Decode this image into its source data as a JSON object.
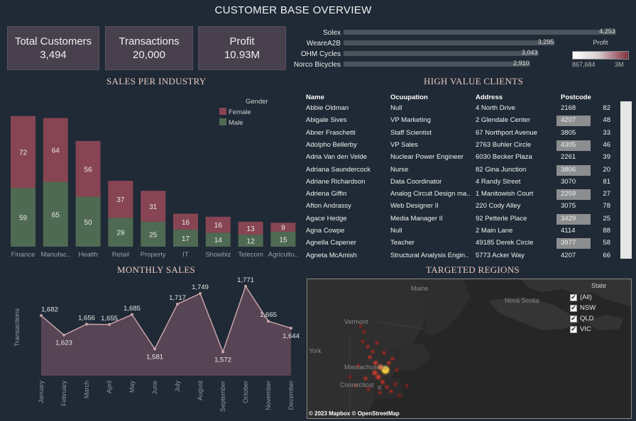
{
  "title": "CUSTOMER BASE OVERVIEW",
  "kpis": [
    {
      "label": "Total Customers",
      "value": "3,494"
    },
    {
      "label": "Transactions",
      "value": "20,000"
    },
    {
      "label": "Profit",
      "value": "10.93M"
    }
  ],
  "top_profit": {
    "legend_title": "Profit",
    "legend_min": "867,684",
    "legend_max": "3M",
    "legend_colors": [
      "#ffffff",
      "#7c3040"
    ],
    "bars": [
      {
        "name": "Solex",
        "value": 4253,
        "label": "4,253"
      },
      {
        "name": "WeareA2B",
        "value": 3295,
        "label": "3,295"
      },
      {
        "name": "OHM Cycles",
        "value": 3043,
        "label": "3,043"
      },
      {
        "name": "Norco Bicycles",
        "value": 2910,
        "label": "2,910"
      }
    ]
  },
  "sections": {
    "industry": "SALES  PER INDUSTRY",
    "clients": "HIGH VALUE CLIENTS",
    "monthly": "MONTHLY SALES",
    "regions": "TARGETED REGIONS"
  },
  "chart_data": [
    {
      "type": "bar",
      "stacked": true,
      "categories": [
        "Finance",
        "Manufac..",
        "Health",
        "Retail",
        "Property",
        "IT",
        "Showbiz",
        "Telecom",
        "Agricultu.."
      ],
      "series": [
        {
          "name": "Female",
          "color": "#874553",
          "values": [
            72,
            64,
            56,
            37,
            31,
            16,
            16,
            13,
            9
          ]
        },
        {
          "name": "Male",
          "color": "#4f6a52",
          "values": [
            59,
            65,
            50,
            29,
            25,
            17,
            14,
            12,
            15
          ]
        }
      ],
      "legend_title": "Gender",
      "legend_position": "top-right"
    },
    {
      "type": "area",
      "categories": [
        "January",
        "February",
        "March",
        "April",
        "May",
        "June",
        "July",
        "August",
        "September",
        "October",
        "November",
        "December"
      ],
      "values": [
        1682,
        1623,
        1656,
        1655,
        1685,
        1581,
        1717,
        1749,
        1572,
        1771,
        1665,
        1644
      ],
      "labels": [
        "1,682",
        "1,623",
        "1,656",
        "1,655",
        "1,685",
        "1,581",
        "1,717",
        "1,749",
        "1,572",
        "1,771",
        "1,665",
        "1,644"
      ],
      "ylabel": "Transactions",
      "color": "#574454"
    }
  ],
  "clients": {
    "headers": [
      "Name",
      "Ocuupation",
      "Address",
      "Postcode"
    ],
    "rows": [
      {
        "name": "Abbie Oldman",
        "occupation": "Null",
        "address": "4 North Drive",
        "postcode": "2168",
        "n": "82",
        "hl": false
      },
      {
        "name": "Abigale Sives",
        "occupation": "VP Marketing",
        "address": "2 Glendale Center",
        "postcode": "4207",
        "n": "48",
        "hl": true
      },
      {
        "name": "Abner Fraschetti",
        "occupation": "Staff Scientist",
        "address": "67 Northport Avenue",
        "postcode": "3805",
        "n": "33",
        "hl": false
      },
      {
        "name": "Adolpho Bellerby",
        "occupation": "VP Sales",
        "address": "2763 Buhler Circle",
        "postcode": "4305",
        "n": "46",
        "hl": true
      },
      {
        "name": "Adria Van den Velde",
        "occupation": "Nuclear Power Engineer",
        "address": "6030 Becker Plaza",
        "postcode": "2261",
        "n": "39",
        "hl": false
      },
      {
        "name": "Adriana Saundercock",
        "occupation": "Nurse",
        "address": "82 Gina Junction",
        "postcode": "3806",
        "n": "20",
        "hl": true
      },
      {
        "name": "Adriane Richardson",
        "occupation": "Data Coordinator",
        "address": "4 Randy Street",
        "postcode": "3070",
        "n": "81",
        "hl": false
      },
      {
        "name": "Adriena Giffin",
        "occupation": "Analog Circuit Design ma..",
        "address": "1 Manitowish Court",
        "postcode": "2259",
        "n": "27",
        "hl": true
      },
      {
        "name": "Afton Andrassy",
        "occupation": "Web Designer II",
        "address": "220 Cody Alley",
        "postcode": "3075",
        "n": "78",
        "hl": false
      },
      {
        "name": "Agace Hedge",
        "occupation": "Media Manager II",
        "address": "92 Petterle Place",
        "postcode": "3429",
        "n": "25",
        "hl": true
      },
      {
        "name": "Agna Cowpe",
        "occupation": "Null",
        "address": "2 Main Lane",
        "postcode": "4114",
        "n": "88",
        "hl": false
      },
      {
        "name": "Agnella Capener",
        "occupation": "Teacher",
        "address": "49185 Derek Circle",
        "postcode": "3977",
        "n": "58",
        "hl": true
      },
      {
        "name": "Agneta McAmish",
        "occupation": "Structural Analysis Engin..",
        "address": "5773 Acker Way",
        "postcode": "4207",
        "n": "66",
        "hl": false
      }
    ]
  },
  "map": {
    "labels": {
      "maine": "Maine",
      "nova_scotia": "Nova Scotia",
      "vermont": "Vermont",
      "york": "York",
      "massachusetts": "Massachusetts",
      "connecticut": "Connecticut",
      "ri": "R"
    },
    "credit": "© 2023 Mapbox  © OpenStreetMap",
    "filter_title": "State",
    "filters": [
      "(All)",
      "NSW",
      "QLD",
      "VIC"
    ]
  }
}
